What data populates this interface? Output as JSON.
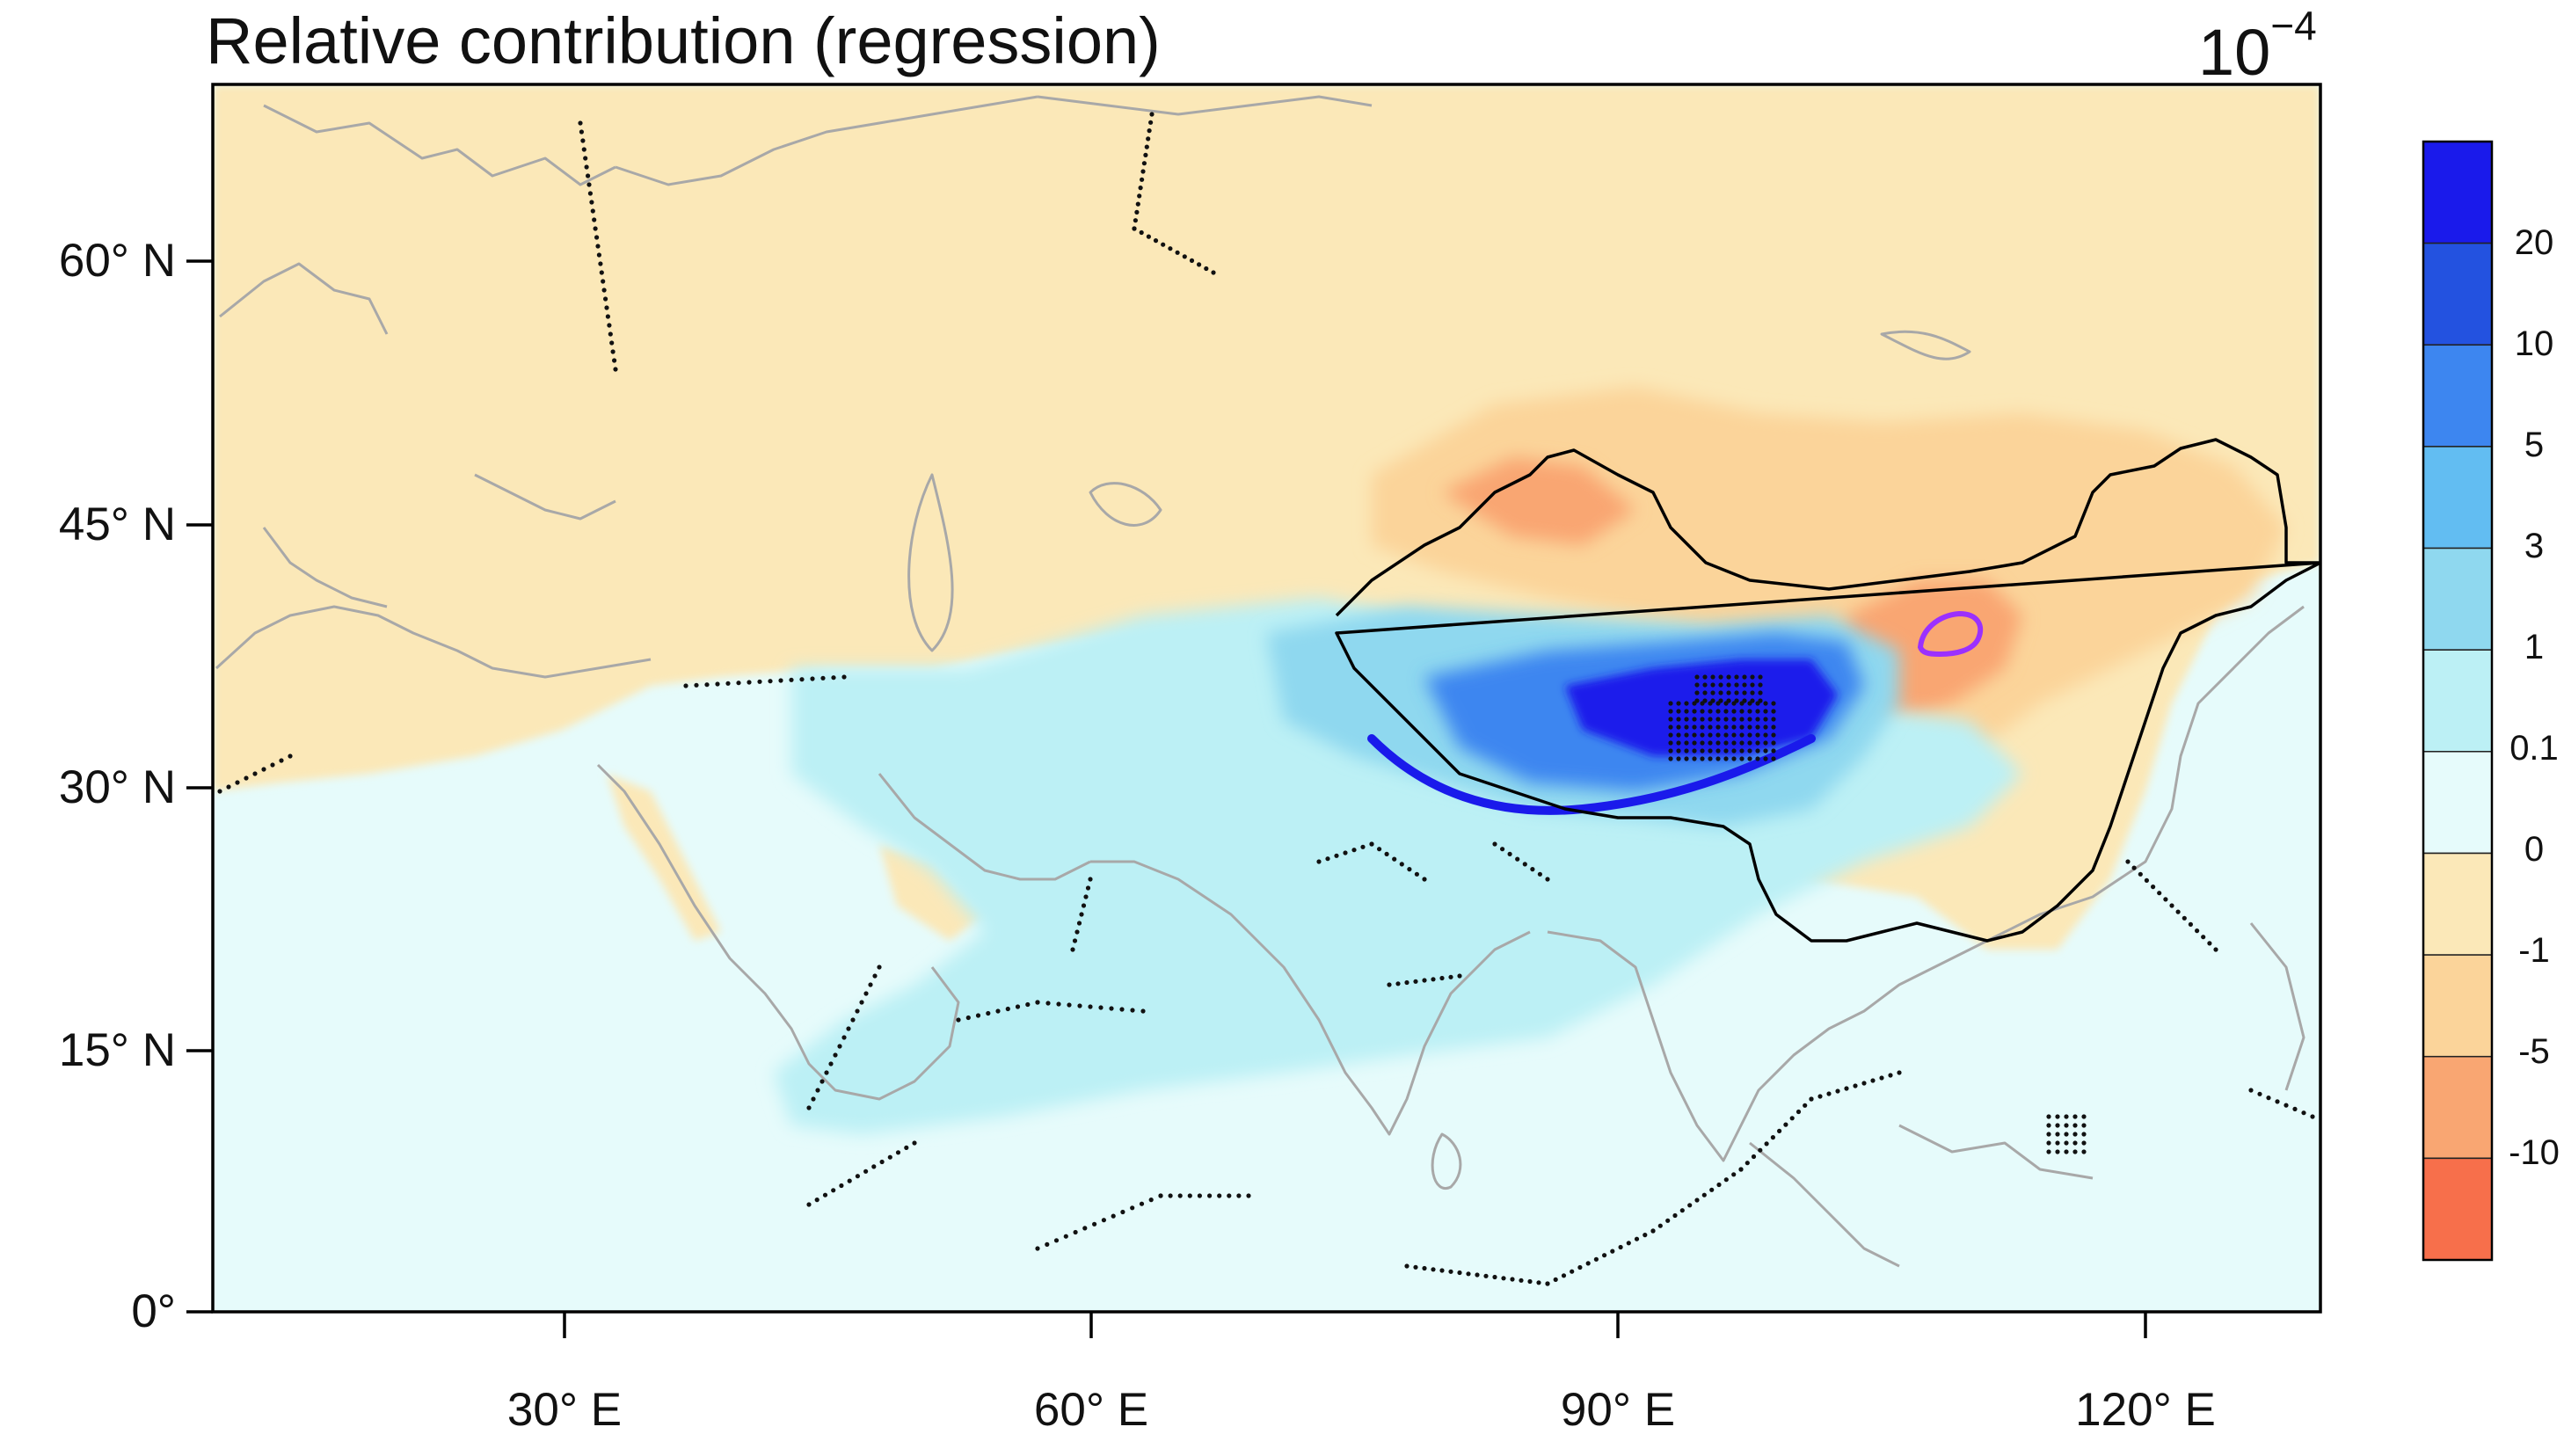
{
  "title": "Relative contribution (regression)",
  "scale": {
    "base": "10",
    "exponent": "−4"
  },
  "lat_labels": [
    "60° N",
    "45° N",
    "30° N",
    "15° N",
    "0°"
  ],
  "lon_labels": [
    "30° E",
    "60° E",
    "90° E",
    "120° E"
  ],
  "colorbar": {
    "labels": [
      "20",
      "10",
      "5",
      "3",
      "1",
      "0.1",
      "0",
      "-1",
      "-5",
      "-10"
    ],
    "colors": [
      "#1a1aeb",
      "#2352e0",
      "#3d86f0",
      "#62bdf2",
      "#8fd8ef",
      "#bcf0f5",
      "#e6fbfb",
      "#fbe8b8",
      "#fbd49a",
      "#f9a672",
      "#f76f4b"
    ]
  },
  "map_colors": {
    "ocean": "#e6fbfb",
    "land_negative": "#fbe8b8",
    "moderate_negative": "#fbd49a",
    "strong_negative": "#f9a672",
    "weak_positive": "#bcf0f5",
    "positive": "#8fd8ef",
    "strong_positive": "#3d86f0",
    "max_positive": "#1a1aeb",
    "coastline": "#a8a8a8",
    "china_border": "#000000",
    "source_region": "#9b30ff"
  }
}
